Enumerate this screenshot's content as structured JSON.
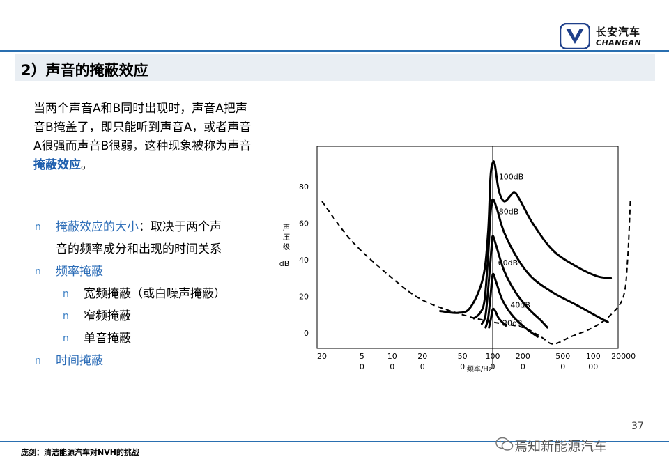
{
  "header": {
    "logo_cn": "长安汽车",
    "logo_en": "CHANGAN",
    "accent": "#2a6fb0"
  },
  "title": "2）声音的掩蔽效应",
  "paragraph": {
    "lines": [
      "当两个声音A和B同时出现时，声音A把声",
      "音B掩盖了，即只能听到声音A，或者声音",
      "A很强而声音B很弱，这种现象被称为声音"
    ],
    "highlight": "掩蔽效应",
    "tail": "。"
  },
  "bullets": [
    {
      "marker": "n",
      "line1_hl": "掩蔽效应的大小",
      "line1_rest": "：取决于两个声",
      "line2": "音的频率成分和出现的时间关系"
    },
    {
      "marker": "n",
      "text": "频率掩蔽"
    },
    {
      "marker": "n",
      "text": "宽频掩蔽（或白噪声掩蔽）"
    },
    {
      "marker": "n",
      "text": "窄频掩蔽"
    },
    {
      "marker": "n",
      "text": "单音掩蔽"
    },
    {
      "marker": "n",
      "text": "时间掩蔽"
    }
  ],
  "chart_data": {
    "type": "line",
    "ylabel_chars": [
      "声",
      "压",
      "级"
    ],
    "ylabel_unit": "dB",
    "xlabel": "频率/Hz",
    "x_scale": "log",
    "xlim": [
      20,
      20000
    ],
    "ylim": [
      -10,
      95
    ],
    "y_ticks": [
      "0",
      "20",
      "40",
      "60",
      "80"
    ],
    "x_ticks": [
      {
        "v": 20,
        "l1": "20",
        "l2": ""
      },
      {
        "v": 50,
        "l1": "5",
        "l2": "0"
      },
      {
        "v": 100,
        "l1": "10",
        "l2": "0"
      },
      {
        "v": 200,
        "l1": "20",
        "l2": "0"
      },
      {
        "v": 500,
        "l1": "50",
        "l2": "0"
      },
      {
        "v": 1000,
        "l1": "100",
        "l2": "0"
      },
      {
        "v": 2000,
        "l1": "200",
        "l2": "0"
      },
      {
        "v": 5000,
        "l1": "500",
        "l2": "0"
      },
      {
        "v": 10000,
        "l1": "100",
        "l2": "00"
      },
      {
        "v": 20000,
        "l1": "20000",
        "l2": ""
      }
    ],
    "threshold": {
      "name": "hearing threshold",
      "dashed": true,
      "points": [
        [
          20,
          72
        ],
        [
          40,
          50
        ],
        [
          100,
          30
        ],
        [
          200,
          18
        ],
        [
          500,
          10
        ],
        [
          1000,
          6
        ],
        [
          2000,
          3
        ],
        [
          3000,
          -2
        ],
        [
          4000,
          -6
        ],
        [
          6000,
          -2
        ],
        [
          10000,
          3
        ],
        [
          15000,
          10
        ],
        [
          20000,
          20
        ],
        [
          22000,
          40
        ],
        [
          23500,
          74
        ]
      ]
    },
    "series": [
      {
        "label": "100dB",
        "points": [
          [
            300,
            12
          ],
          [
            450,
            11
          ],
          [
            600,
            14
          ],
          [
            800,
            30
          ],
          [
            900,
            55
          ],
          [
            950,
            85
          ],
          [
            1000,
            93
          ],
          [
            1050,
            92
          ],
          [
            1150,
            78
          ],
          [
            1300,
            72
          ],
          [
            1500,
            75
          ],
          [
            1650,
            77
          ],
          [
            1900,
            72
          ],
          [
            2500,
            60
          ],
          [
            4000,
            45
          ],
          [
            7000,
            36
          ],
          [
            11000,
            31
          ],
          [
            15000,
            30
          ]
        ]
      },
      {
        "label": "80dB",
        "points": [
          [
            650,
            8
          ],
          [
            750,
            11
          ],
          [
            830,
            18
          ],
          [
            900,
            42
          ],
          [
            950,
            65
          ],
          [
            1000,
            73
          ],
          [
            1100,
            68
          ],
          [
            1300,
            55
          ],
          [
            1800,
            40
          ],
          [
            2500,
            30
          ],
          [
            4000,
            22
          ],
          [
            7000,
            15
          ],
          [
            11000,
            9
          ],
          [
            14000,
            6
          ]
        ]
      },
      {
        "label": "60dB",
        "points": [
          [
            780,
            5
          ],
          [
            850,
            10
          ],
          [
            920,
            30
          ],
          [
            970,
            46
          ],
          [
            1000,
            53
          ],
          [
            1080,
            48
          ],
          [
            1300,
            34
          ],
          [
            1700,
            22
          ],
          [
            2300,
            13
          ],
          [
            3000,
            7
          ],
          [
            3500,
            3
          ]
        ]
      },
      {
        "label": "40dB",
        "points": [
          [
            850,
            3
          ],
          [
            900,
            8
          ],
          [
            950,
            20
          ],
          [
            1000,
            32
          ],
          [
            1080,
            28
          ],
          [
            1250,
            18
          ],
          [
            1600,
            9
          ],
          [
            2200,
            2
          ],
          [
            2800,
            -2
          ]
        ]
      },
      {
        "label": "20dB",
        "points": [
          [
            920,
            3
          ],
          [
            960,
            8
          ],
          [
            1000,
            13
          ],
          [
            1060,
            12
          ],
          [
            1150,
            8
          ],
          [
            1350,
            4
          ]
        ]
      }
    ],
    "labels": [
      {
        "text": "100dB",
        "x": 1150,
        "y": 84
      },
      {
        "text": "80dB",
        "x": 1150,
        "y": 65
      },
      {
        "text": "60dB",
        "x": 1130,
        "y": 37
      },
      {
        "text": "40dB",
        "x": 1500,
        "y": 14
      },
      {
        "text": "20dB",
        "x": 1250,
        "y": 4
      }
    ]
  },
  "page_number": "37",
  "footer_text": "庞剑：清洁能源汽车对NVH的挑战",
  "watermark": "焉知新能源汽车"
}
